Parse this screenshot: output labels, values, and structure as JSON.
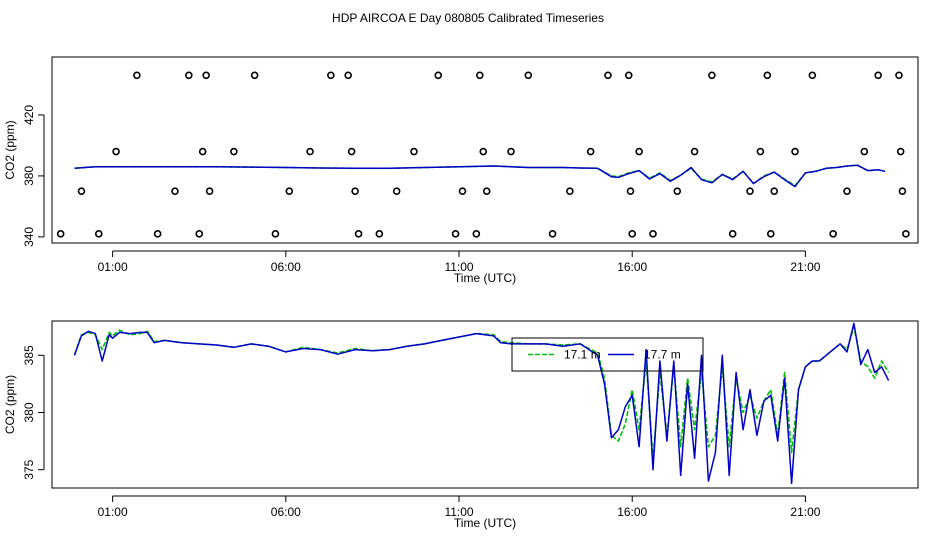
{
  "title": "HDP AIRCOA E  Day 080805  Calibrated Timeseries",
  "chart_data": [
    {
      "type": "line",
      "xlabel": "Time (UTC)",
      "ylabel": "CO2 (ppm)",
      "xlim": [
        -0.75,
        24.25
      ],
      "ylim": [
        336,
        458
      ],
      "x_ticks": [
        1,
        6,
        11,
        16,
        21
      ],
      "x_tick_labels": [
        "01:00",
        "06:00",
        "11:00",
        "16:00",
        "21:00"
      ],
      "y_ticks": [
        340,
        380,
        420
      ],
      "y_tick_labels": [
        "340",
        "380",
        "420"
      ],
      "grid": false,
      "series": [
        {
          "color": "#00c000",
          "style": "dashed",
          "x": [
            -0.1,
            0.5,
            1,
            2,
            3,
            4,
            5,
            6,
            7,
            8,
            9,
            10,
            11,
            12,
            13,
            14,
            14.5,
            15,
            15.4,
            15.6,
            15.9,
            16.2,
            16.5,
            16.8,
            17.1,
            17.4,
            17.7,
            18,
            18.3,
            18.6,
            18.9,
            19.2,
            19.5,
            19.8,
            20.1,
            20.4,
            20.7,
            21,
            21.3,
            21.6,
            21.9,
            22.2,
            22.5,
            22.8,
            23.1,
            23.3
          ],
          "y": [
            385,
            386,
            386,
            386,
            386,
            386,
            385.8,
            385.5,
            385.2,
            385,
            385,
            385.5,
            386,
            386.5,
            385.5,
            385.5,
            385.2,
            385,
            380,
            379.5,
            382,
            383.5,
            378.5,
            382,
            377,
            380.5,
            385,
            378,
            376,
            381,
            378,
            383,
            375,
            380,
            382.5,
            378,
            373.5,
            382,
            383,
            385,
            385.5,
            386.5,
            387,
            383.5,
            384,
            383
          ]
        },
        {
          "color": "#0000cc",
          "style": "solid",
          "x": [
            -0.1,
            0.5,
            1,
            2,
            3,
            4,
            5,
            6,
            7,
            8,
            9,
            10,
            11,
            12,
            13,
            14,
            14.5,
            15,
            15.4,
            15.6,
            15.9,
            16.2,
            16.5,
            16.8,
            17.1,
            17.4,
            17.7,
            18,
            18.3,
            18.6,
            18.9,
            19.2,
            19.5,
            19.8,
            20.1,
            20.4,
            20.7,
            21,
            21.3,
            21.6,
            21.9,
            22.2,
            22.5,
            22.8,
            23.1,
            23.3
          ],
          "y": [
            385,
            386,
            386,
            386,
            386,
            386,
            385.8,
            385.5,
            385.2,
            385,
            385,
            385.5,
            386,
            386.5,
            385.5,
            385.5,
            385.2,
            385,
            379.5,
            379,
            381.5,
            383.5,
            378,
            381.5,
            376.5,
            380.5,
            385.5,
            377.5,
            375.5,
            381,
            377.5,
            383,
            375,
            379.5,
            382.5,
            377.5,
            373,
            382,
            383,
            385,
            385.5,
            386.5,
            387,
            383.5,
            384,
            383
          ]
        },
        {
          "type": "scatter",
          "marker": "open-circle",
          "x": [
            -0.5,
            0.1,
            0.6,
            1.1,
            1.7,
            2.3,
            2.8,
            3.2,
            3.5,
            3.6,
            3.7,
            3.8,
            4.5,
            5.1,
            5.7,
            6.1,
            6.7,
            7.3,
            7.8,
            7.9,
            8.0,
            8.1,
            8.7,
            9.2,
            9.7,
            10.4,
            10.9,
            11.1,
            11.5,
            11.6,
            11.7,
            11.8,
            12.5,
            13.0,
            13.7,
            14.2,
            14.8,
            15.3,
            15.9,
            15.95,
            16.0,
            16.2,
            16.6,
            17.3,
            17.8,
            18.3,
            18.9,
            19.4,
            19.7,
            19.9,
            20.0,
            20.1,
            20.7,
            21.2,
            21.8,
            22.2,
            22.7,
            23.1,
            23.7,
            23.75,
            23.8,
            23.9
          ],
          "y": [
            342,
            370,
            342,
            396,
            446,
            342,
            370,
            446,
            342,
            396,
            446,
            370,
            396,
            446,
            342,
            370,
            396,
            446,
            446,
            396,
            370,
            342,
            342,
            370,
            396,
            446,
            342,
            370,
            342,
            446,
            396,
            370,
            396,
            446,
            342,
            370,
            396,
            446,
            446,
            370,
            342,
            396,
            342,
            370,
            396,
            446,
            342,
            370,
            396,
            446,
            342,
            370,
            396,
            446,
            342,
            370,
            396,
            446,
            446,
            396,
            370,
            342
          ]
        }
      ]
    },
    {
      "type": "line",
      "xlabel": "Time (UTC)",
      "ylabel": "CO2 (ppm)",
      "xlim": [
        -0.75,
        24.25
      ],
      "ylim": [
        373.4,
        388.0
      ],
      "x_ticks": [
        1,
        6,
        11,
        16,
        21
      ],
      "x_tick_labels": [
        "01:00",
        "06:00",
        "11:00",
        "16:00",
        "21:00"
      ],
      "y_ticks": [
        375,
        380,
        385
      ],
      "y_tick_labels": [
        "375",
        "380",
        "385"
      ],
      "grid": false,
      "legend": {
        "placement": "top-right",
        "entries": [
          {
            "label": "17.1 m",
            "color": "#00c000",
            "style": "dashed"
          },
          {
            "label": "17.7 m",
            "color": "#0000cc",
            "style": "solid"
          }
        ]
      },
      "series": [
        {
          "name": "17.1 m",
          "color": "#00c000",
          "style": "dashed",
          "x": [
            -0.1,
            0.1,
            0.3,
            0.5,
            0.7,
            0.9,
            1.0,
            1.2,
            1.5,
            1.8,
            2.0,
            2.2,
            2.5,
            3,
            3.5,
            4,
            4.5,
            5,
            5.5,
            6,
            6.5,
            7,
            7.5,
            8,
            8.5,
            9,
            9.5,
            10,
            10.5,
            11,
            11.5,
            12,
            12.2,
            12.5,
            13,
            13.5,
            14,
            14.5,
            15,
            15.2,
            15.4,
            15.6,
            15.8,
            16.0,
            16.2,
            16.4,
            16.6,
            16.8,
            17.0,
            17.2,
            17.4,
            17.6,
            17.8,
            18.0,
            18.2,
            18.4,
            18.6,
            18.8,
            19.0,
            19.2,
            19.4,
            19.6,
            19.8,
            20.0,
            20.2,
            20.4,
            20.6,
            20.8,
            21.0,
            21.2,
            21.4,
            21.6,
            21.8,
            22.0,
            22.2,
            22.4,
            22.6,
            22.8,
            23.0,
            23.2,
            23.4
          ],
          "y": [
            385,
            386.8,
            387.0,
            386.8,
            385.5,
            387.0,
            386.7,
            387.2,
            386.8,
            386.9,
            387.1,
            386.2,
            386.3,
            386.1,
            386.0,
            385.9,
            385.7,
            386.0,
            385.8,
            385.3,
            385.7,
            385.5,
            385.2,
            385.6,
            385.4,
            385.5,
            385.8,
            386.0,
            386.3,
            386.6,
            386.9,
            386.8,
            386.2,
            386.1,
            386.0,
            386.0,
            385.9,
            386.0,
            385.2,
            383.0,
            378.0,
            377.5,
            379.0,
            382.0,
            378.5,
            384.5,
            376.0,
            383.5,
            378.0,
            384.0,
            377.0,
            383.0,
            378.5,
            383.5,
            377.0,
            378.0,
            384.0,
            377.0,
            383.0,
            380.0,
            381.5,
            379.5,
            381.0,
            382.0,
            378.0,
            383.5,
            376.5,
            382.0,
            384.0,
            384.5,
            384.5,
            385.0,
            385.5,
            386.0,
            385.5,
            387.5,
            384.5,
            384.0,
            383.0,
            384.5,
            383.5
          ]
        },
        {
          "name": "17.7 m",
          "color": "#0000cc",
          "style": "solid",
          "x": [
            -0.1,
            0.1,
            0.3,
            0.5,
            0.7,
            0.9,
            1.0,
            1.2,
            1.5,
            1.8,
            2.0,
            2.2,
            2.5,
            3,
            3.5,
            4,
            4.5,
            5,
            5.5,
            6,
            6.5,
            7,
            7.5,
            8,
            8.5,
            9,
            9.5,
            10,
            10.5,
            11,
            11.5,
            12,
            12.2,
            12.5,
            13,
            13.5,
            14,
            14.5,
            15,
            15.2,
            15.4,
            15.6,
            15.8,
            16.0,
            16.2,
            16.4,
            16.6,
            16.8,
            17.0,
            17.2,
            17.4,
            17.6,
            17.8,
            18.0,
            18.2,
            18.4,
            18.6,
            18.8,
            19.0,
            19.2,
            19.4,
            19.6,
            19.8,
            20.0,
            20.2,
            20.4,
            20.6,
            20.8,
            21.0,
            21.2,
            21.4,
            21.6,
            21.8,
            22.0,
            22.2,
            22.4,
            22.6,
            22.8,
            23.0,
            23.2,
            23.4
          ],
          "y": [
            385,
            386.7,
            387.1,
            386.9,
            384.5,
            386.8,
            386.5,
            387.0,
            386.9,
            387.0,
            387.0,
            386.1,
            386.3,
            386.1,
            386.0,
            385.9,
            385.7,
            386.0,
            385.8,
            385.3,
            385.6,
            385.5,
            385.1,
            385.5,
            385.4,
            385.5,
            385.8,
            386.0,
            386.3,
            386.6,
            386.9,
            386.7,
            386.1,
            386.0,
            386.0,
            386.0,
            385.8,
            386.0,
            385.0,
            382.5,
            377.8,
            378.5,
            380.5,
            381.5,
            377.0,
            385.5,
            375.0,
            384.5,
            377.5,
            384.5,
            374.5,
            382.5,
            376.0,
            385.0,
            374.0,
            376.5,
            385.0,
            374.5,
            383.5,
            378.5,
            382.0,
            378.0,
            381.0,
            381.5,
            377.5,
            383.0,
            373.8,
            382.0,
            384.0,
            384.5,
            384.5,
            385.0,
            385.5,
            386.0,
            385.3,
            387.8,
            384.2,
            385.5,
            383.5,
            384.0,
            382.8
          ]
        }
      ]
    }
  ]
}
